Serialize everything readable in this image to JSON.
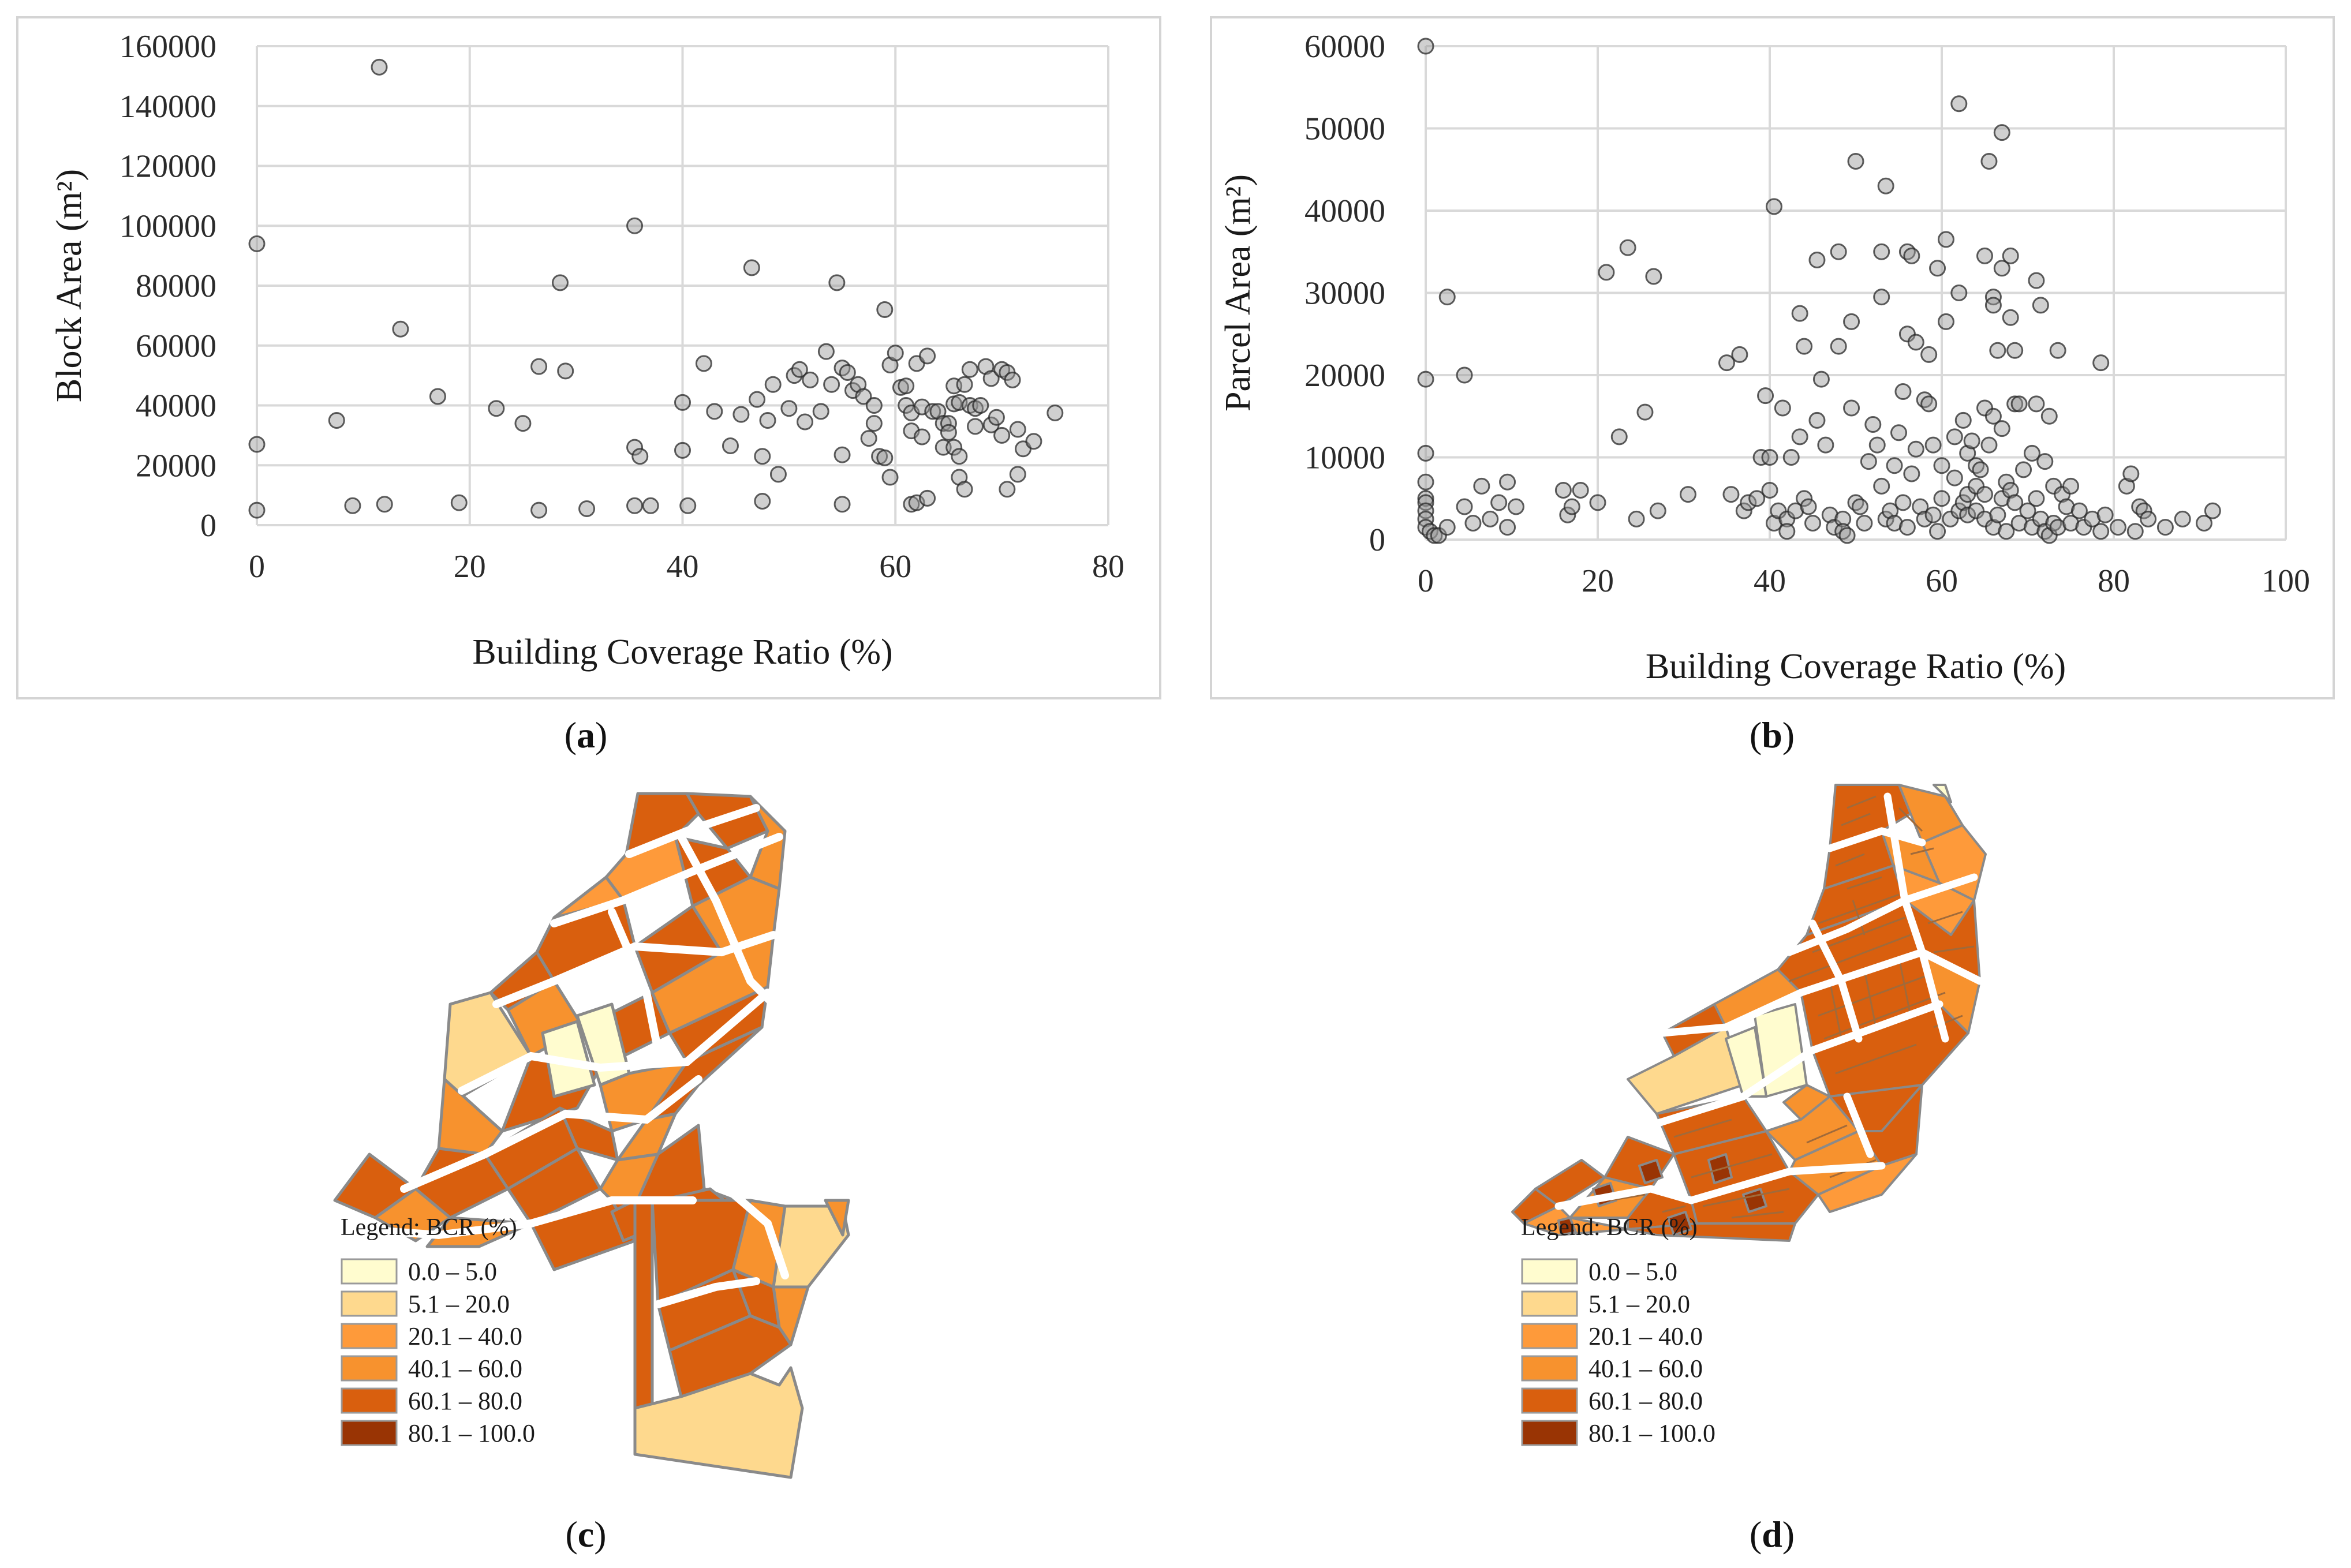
{
  "chart_data": [
    {
      "id": "a",
      "type": "scatter",
      "caption": "a",
      "xlabel": "Building Coverage Ratio (%)",
      "ylabel": "Block Area (m²)",
      "xlim": [
        0,
        80
      ],
      "ylim": [
        0,
        160000
      ],
      "xticks": [
        0,
        20,
        40,
        60,
        80
      ],
      "yticks": [
        0,
        20000,
        40000,
        60000,
        80000,
        100000,
        120000,
        140000,
        160000
      ],
      "grid": true,
      "points": [
        [
          0,
          94000
        ],
        [
          0,
          27000
        ],
        [
          0,
          5000
        ],
        [
          7.5,
          35000
        ],
        [
          9,
          6500
        ],
        [
          11.5,
          153000
        ],
        [
          12,
          7000
        ],
        [
          13.5,
          65500
        ],
        [
          17,
          43000
        ],
        [
          19,
          7500
        ],
        [
          22.5,
          39000
        ],
        [
          25,
          34000
        ],
        [
          26.5,
          53000
        ],
        [
          26.5,
          5000
        ],
        [
          28.5,
          81000
        ],
        [
          29,
          51500
        ],
        [
          31,
          5500
        ],
        [
          35.5,
          100000
        ],
        [
          35.5,
          26000
        ],
        [
          35.5,
          6500
        ],
        [
          36,
          23000
        ],
        [
          37,
          6500
        ],
        [
          40,
          41000
        ],
        [
          40,
          25000
        ],
        [
          40.5,
          6500
        ],
        [
          42,
          54000
        ],
        [
          43,
          38000
        ],
        [
          44.5,
          26500
        ],
        [
          45.5,
          37000
        ],
        [
          46.5,
          86000
        ],
        [
          47,
          42000
        ],
        [
          47.5,
          23000
        ],
        [
          47.5,
          8000
        ],
        [
          48,
          35000
        ],
        [
          48.5,
          47000
        ],
        [
          49,
          17000
        ],
        [
          50,
          39000
        ],
        [
          50.5,
          50000
        ],
        [
          51,
          52000
        ],
        [
          51.5,
          34500
        ],
        [
          52,
          48500
        ],
        [
          53,
          38000
        ],
        [
          53.5,
          58000
        ],
        [
          54,
          47000
        ],
        [
          54.5,
          81000
        ],
        [
          55,
          52500
        ],
        [
          55,
          23500
        ],
        [
          55,
          7000
        ],
        [
          55.5,
          51000
        ],
        [
          56,
          45000
        ],
        [
          56.5,
          47000
        ],
        [
          57,
          43000
        ],
        [
          57.5,
          29000
        ],
        [
          58,
          34000
        ],
        [
          58,
          40000
        ],
        [
          58.5,
          23000
        ],
        [
          59,
          72000
        ],
        [
          59,
          22500
        ],
        [
          59.5,
          53500
        ],
        [
          59.5,
          16000
        ],
        [
          60,
          57500
        ],
        [
          60.5,
          46000
        ],
        [
          61,
          46500
        ],
        [
          61,
          40000
        ],
        [
          61.5,
          37500
        ],
        [
          61.5,
          31500
        ],
        [
          61.5,
          7000
        ],
        [
          62,
          54000
        ],
        [
          62,
          7500
        ],
        [
          62.5,
          39500
        ],
        [
          62.5,
          29500
        ],
        [
          63,
          56500
        ],
        [
          63,
          9000
        ],
        [
          63.5,
          38000
        ],
        [
          64,
          38000
        ],
        [
          64.5,
          34000
        ],
        [
          64.5,
          26000
        ],
        [
          65,
          34000
        ],
        [
          65,
          31000
        ],
        [
          65.5,
          46500
        ],
        [
          65.5,
          40500
        ],
        [
          65.5,
          26000
        ],
        [
          66,
          41000
        ],
        [
          66,
          23000
        ],
        [
          66,
          16000
        ],
        [
          66.5,
          47000
        ],
        [
          66.5,
          12000
        ],
        [
          67,
          52000
        ],
        [
          67,
          40000
        ],
        [
          67.5,
          39000
        ],
        [
          67.5,
          33000
        ],
        [
          68,
          40000
        ],
        [
          68.5,
          53000
        ],
        [
          69,
          49000
        ],
        [
          69,
          33500
        ],
        [
          69.5,
          36000
        ],
        [
          70,
          52000
        ],
        [
          70,
          30000
        ],
        [
          70.5,
          51000
        ],
        [
          70.5,
          12000
        ],
        [
          71,
          48500
        ],
        [
          71.5,
          32000
        ],
        [
          71.5,
          17000
        ],
        [
          72,
          25500
        ],
        [
          73,
          28000
        ],
        [
          75,
          37500
        ]
      ]
    },
    {
      "id": "b",
      "type": "scatter",
      "caption": "b",
      "xlabel": "Building Coverage Ratio (%)",
      "ylabel": "Parcel Area (m²)",
      "xlim": [
        0,
        100
      ],
      "ylim": [
        0,
        60000
      ],
      "xticks": [
        0,
        20,
        40,
        60,
        80,
        100
      ],
      "yticks": [
        0,
        10000,
        20000,
        30000,
        40000,
        50000,
        60000
      ],
      "grid": true,
      "points": [
        [
          0,
          60000
        ],
        [
          0,
          19500
        ],
        [
          0,
          10500
        ],
        [
          0,
          7000
        ],
        [
          0,
          5000
        ],
        [
          0,
          4500
        ],
        [
          0,
          3500
        ],
        [
          0,
          2500
        ],
        [
          0,
          1500
        ],
        [
          0.5,
          1000
        ],
        [
          1,
          500
        ],
        [
          1.5,
          500
        ],
        [
          2.5,
          29500
        ],
        [
          2.5,
          1500
        ],
        [
          4.5,
          20000
        ],
        [
          4.5,
          4000
        ],
        [
          5.5,
          2000
        ],
        [
          6.5,
          6500
        ],
        [
          7.5,
          2500
        ],
        [
          8.5,
          4500
        ],
        [
          9.5,
          7000
        ],
        [
          9.5,
          1500
        ],
        [
          10.5,
          4000
        ],
        [
          16,
          6000
        ],
        [
          16.5,
          3000
        ],
        [
          17,
          4000
        ],
        [
          18,
          6000
        ],
        [
          20,
          4500
        ],
        [
          21,
          32500
        ],
        [
          22.5,
          12500
        ],
        [
          23.5,
          35500
        ],
        [
          24.5,
          2500
        ],
        [
          25.5,
          15500
        ],
        [
          26.5,
          32000
        ],
        [
          27,
          3500
        ],
        [
          30.5,
          5500
        ],
        [
          35,
          21500
        ],
        [
          35.5,
          5500
        ],
        [
          36.5,
          22500
        ],
        [
          37,
          3500
        ],
        [
          37.5,
          4500
        ],
        [
          38.5,
          5000
        ],
        [
          39,
          10000
        ],
        [
          39.5,
          17500
        ],
        [
          40,
          10000
        ],
        [
          40,
          6000
        ],
        [
          40.5,
          40500
        ],
        [
          40.5,
          2000
        ],
        [
          41,
          3500
        ],
        [
          41.5,
          16000
        ],
        [
          42,
          2500
        ],
        [
          42,
          1000
        ],
        [
          42.5,
          10000
        ],
        [
          43,
          3500
        ],
        [
          43.5,
          27500
        ],
        [
          43.5,
          12500
        ],
        [
          44,
          23500
        ],
        [
          44,
          5000
        ],
        [
          44.5,
          4000
        ],
        [
          45,
          2000
        ],
        [
          45.5,
          34000
        ],
        [
          45.5,
          14500
        ],
        [
          46,
          19500
        ],
        [
          46.5,
          11500
        ],
        [
          47,
          3000
        ],
        [
          47.5,
          1500
        ],
        [
          48,
          35000
        ],
        [
          48,
          23500
        ],
        [
          48.5,
          2500
        ],
        [
          48.5,
          1000
        ],
        [
          49,
          500
        ],
        [
          49.5,
          16000
        ],
        [
          49.5,
          26500
        ],
        [
          50,
          46000
        ],
        [
          50,
          4500
        ],
        [
          50.5,
          4000
        ],
        [
          51,
          2000
        ],
        [
          51.5,
          9500
        ],
        [
          52,
          14000
        ],
        [
          52.5,
          11500
        ],
        [
          53,
          35000
        ],
        [
          53,
          29500
        ],
        [
          53,
          6500
        ],
        [
          53.5,
          43000
        ],
        [
          53.5,
          2500
        ],
        [
          54,
          3500
        ],
        [
          54.5,
          9000
        ],
        [
          54.5,
          2000
        ],
        [
          55,
          13000
        ],
        [
          55.5,
          18000
        ],
        [
          55.5,
          4500
        ],
        [
          56,
          35000
        ],
        [
          56,
          25000
        ],
        [
          56,
          1500
        ],
        [
          56.5,
          34500
        ],
        [
          56.5,
          8000
        ],
        [
          57,
          24000
        ],
        [
          57,
          11000
        ],
        [
          57.5,
          4000
        ],
        [
          58,
          17000
        ],
        [
          58,
          2500
        ],
        [
          58.5,
          22500
        ],
        [
          58.5,
          16500
        ],
        [
          59,
          11500
        ],
        [
          59,
          3000
        ],
        [
          59.5,
          33000
        ],
        [
          59.5,
          1000
        ],
        [
          60,
          9000
        ],
        [
          60,
          5000
        ],
        [
          60.5,
          36500
        ],
        [
          60.5,
          26500
        ],
        [
          61,
          2500
        ],
        [
          61.5,
          12500
        ],
        [
          61.5,
          7500
        ],
        [
          62,
          53000
        ],
        [
          62,
          30000
        ],
        [
          62,
          3500
        ],
        [
          62.5,
          14500
        ],
        [
          62.5,
          4500
        ],
        [
          63,
          10500
        ],
        [
          63,
          5500
        ],
        [
          63,
          3000
        ],
        [
          63.5,
          12000
        ],
        [
          64,
          9000
        ],
        [
          64,
          6500
        ],
        [
          64,
          3500
        ],
        [
          64.5,
          8500
        ],
        [
          65,
          34500
        ],
        [
          65,
          16000
        ],
        [
          65,
          5500
        ],
        [
          65,
          2500
        ],
        [
          65.5,
          46000
        ],
        [
          65.5,
          11500
        ],
        [
          66,
          29500
        ],
        [
          66,
          28500
        ],
        [
          66,
          15000
        ],
        [
          66,
          1500
        ],
        [
          66.5,
          23000
        ],
        [
          66.5,
          3000
        ],
        [
          67,
          49500
        ],
        [
          67,
          33000
        ],
        [
          67,
          13500
        ],
        [
          67,
          5000
        ],
        [
          67.5,
          7000
        ],
        [
          67.5,
          1000
        ],
        [
          68,
          34500
        ],
        [
          68,
          27000
        ],
        [
          68,
          6000
        ],
        [
          68.5,
          23000
        ],
        [
          68.5,
          16500
        ],
        [
          68.5,
          4500
        ],
        [
          69,
          16500
        ],
        [
          69,
          2000
        ],
        [
          69.5,
          8500
        ],
        [
          70,
          3500
        ],
        [
          70.5,
          10500
        ],
        [
          70.5,
          1500
        ],
        [
          71,
          31500
        ],
        [
          71,
          16500
        ],
        [
          71,
          5000
        ],
        [
          71.5,
          28500
        ],
        [
          71.5,
          2500
        ],
        [
          72,
          9500
        ],
        [
          72,
          1000
        ],
        [
          72.5,
          15000
        ],
        [
          72.5,
          500
        ],
        [
          73,
          6500
        ],
        [
          73,
          2000
        ],
        [
          73.5,
          23000
        ],
        [
          73.5,
          1500
        ],
        [
          74,
          5500
        ],
        [
          74.5,
          4000
        ],
        [
          75,
          6500
        ],
        [
          75,
          2000
        ],
        [
          76,
          3500
        ],
        [
          76.5,
          1500
        ],
        [
          77.5,
          2500
        ],
        [
          78.5,
          21500
        ],
        [
          78.5,
          1000
        ],
        [
          79,
          3000
        ],
        [
          80.5,
          1500
        ],
        [
          81.5,
          6500
        ],
        [
          82,
          8000
        ],
        [
          82.5,
          1000
        ],
        [
          83,
          4000
        ],
        [
          83.5,
          3500
        ],
        [
          84,
          2500
        ],
        [
          86,
          1500
        ],
        [
          88,
          2500
        ],
        [
          90.5,
          2000
        ],
        [
          91.5,
          3500
        ]
      ]
    }
  ],
  "maps": [
    {
      "id": "c",
      "caption": "c",
      "legend_title": "Legend: BCR (%)",
      "legend": [
        {
          "label": "0.0 – 5.0",
          "color": "#FFFCCF"
        },
        {
          "label": "5.1 – 20.0",
          "color": "#FED98E"
        },
        {
          "label": "20.1 – 40.0",
          "color": "#FE9A3A"
        },
        {
          "label": "40.1 – 60.0",
          "color": "#F7922E"
        },
        {
          "label": "60.1 – 80.0",
          "color": "#D95F0E"
        },
        {
          "label": "80.1 – 100.0",
          "color": "#993404"
        }
      ]
    },
    {
      "id": "d",
      "caption": "d",
      "legend_title": "Legend: BCR (%)",
      "legend": [
        {
          "label": "0.0 – 5.0",
          "color": "#FFFCCF"
        },
        {
          "label": "5.1 – 20.0",
          "color": "#FED98E"
        },
        {
          "label": "20.1 – 40.0",
          "color": "#FE9A3A"
        },
        {
          "label": "40.1 – 60.0",
          "color": "#F7922E"
        },
        {
          "label": "60.1 – 80.0",
          "color": "#D95F0E"
        },
        {
          "label": "80.1 – 100.0",
          "color": "#993404"
        }
      ]
    }
  ]
}
